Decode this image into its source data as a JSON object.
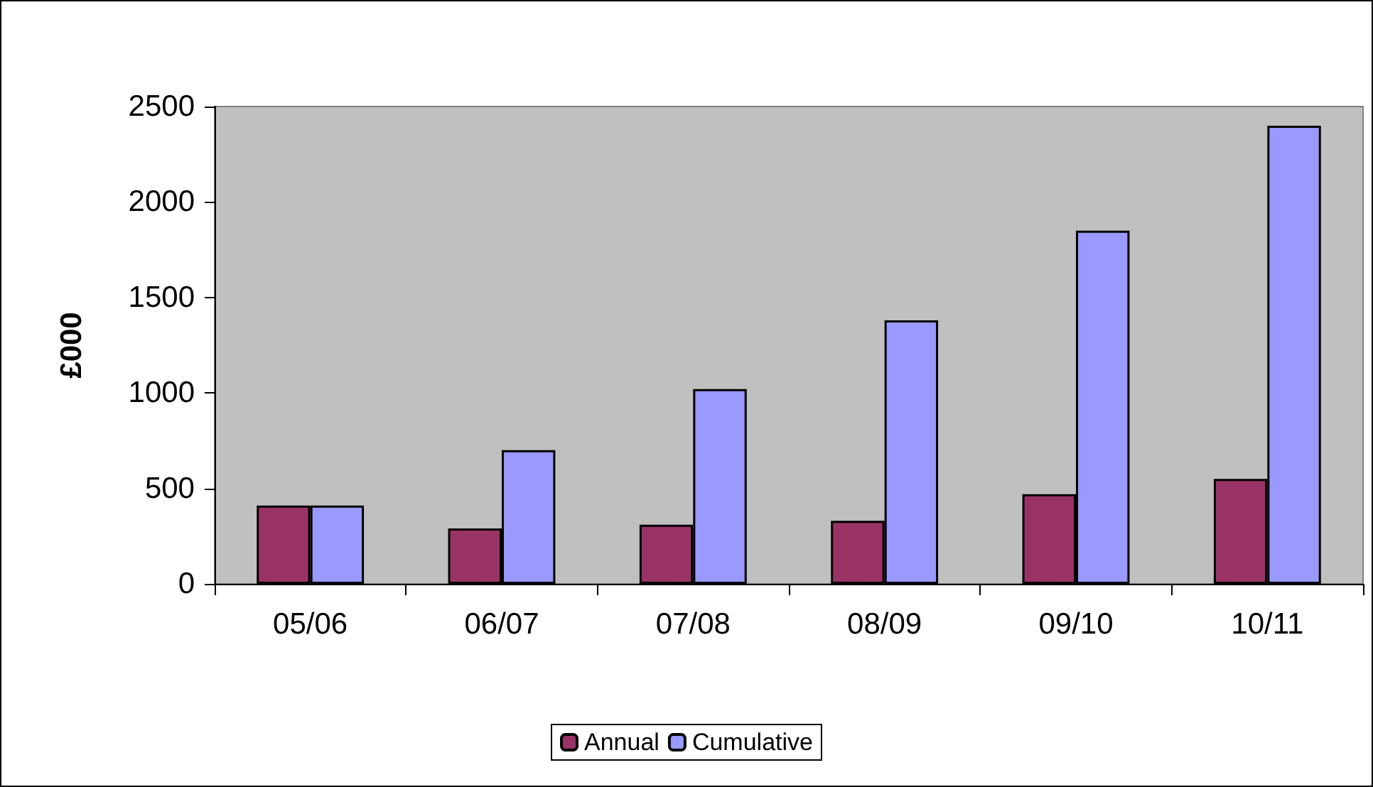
{
  "chart_data": {
    "type": "bar",
    "ylabel": "£000",
    "categories": [
      "05/06",
      "06/07",
      "07/08",
      "08/09",
      "09/10",
      "10/11"
    ],
    "series": [
      {
        "name": "Annual",
        "color": "#993366",
        "values": [
          410,
          290,
          310,
          330,
          470,
          550
        ]
      },
      {
        "name": "Cumulative",
        "color": "#9999ff",
        "values": [
          410,
          700,
          1020,
          1380,
          1850,
          2400
        ]
      }
    ],
    "ylim": [
      0,
      2500
    ],
    "yticks": [
      0,
      500,
      1000,
      1500,
      2000,
      2500
    ],
    "grid": false,
    "legend": "bottom"
  }
}
